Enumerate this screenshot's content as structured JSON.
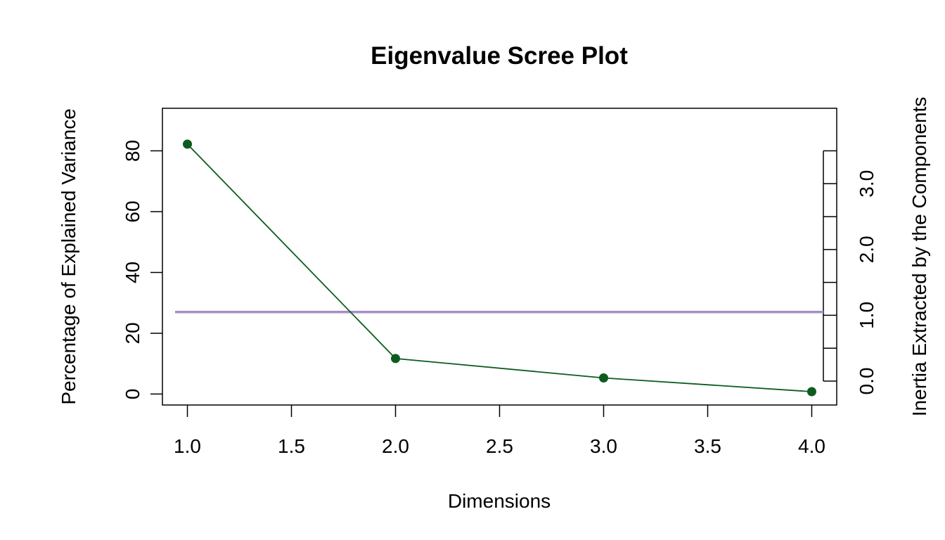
{
  "chart_data": {
    "type": "line",
    "title": "Eigenvalue Scree Plot",
    "xlabel": "Dimensions",
    "ylabel": "Percentage of Explained Variance",
    "ylabel_right": "Inertia Extracted by the Components",
    "x": [
      1,
      2,
      3,
      4
    ],
    "series": [
      {
        "values": [
          82.2,
          11.7,
          5.3,
          0.8
        ],
        "color": "#0d5c1f"
      }
    ],
    "reference_line": {
      "y": 27.0,
      "color": "#a58fc5"
    },
    "xlim": [
      0.88,
      4.12
    ],
    "ylim": [
      -3.6,
      94.0
    ],
    "xticks": [
      "1.0",
      "1.5",
      "2.0",
      "2.5",
      "3.0",
      "3.5",
      "4.0"
    ],
    "yticks": [
      "0",
      "20",
      "40",
      "60",
      "80"
    ],
    "right_axis": {
      "range": [
        0,
        3.5
      ],
      "step": 0.5,
      "labels": [
        "0.0",
        "1.0",
        "2.0",
        "3.0"
      ]
    },
    "grid": false,
    "legend": "none"
  }
}
